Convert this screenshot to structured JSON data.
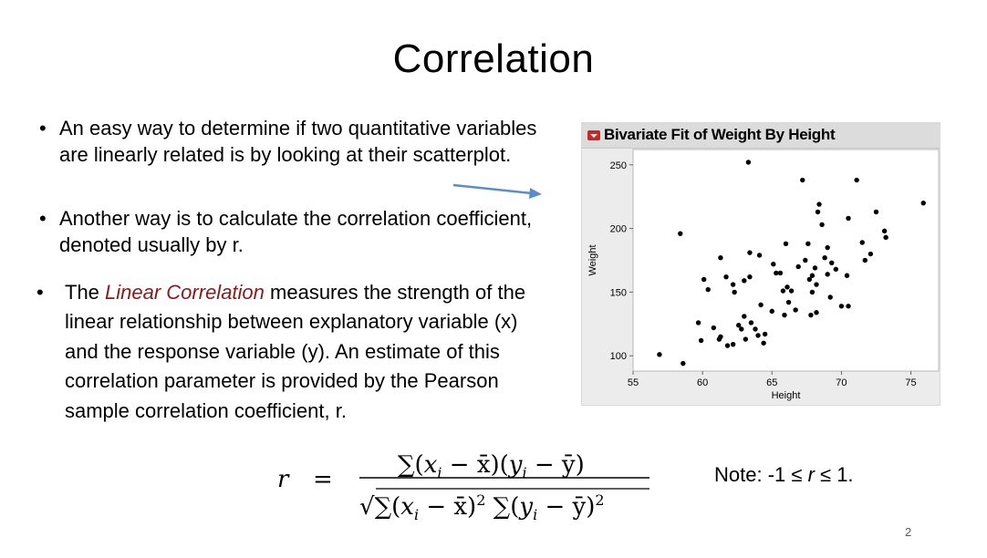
{
  "slide": {
    "title": "Correlation",
    "bullets": [
      "An easy way to determine if two quantitative variables are linearly related is by looking at their scatterplot.",
      "Another way is to calculate the correlation coefficient, denoted usually by r."
    ],
    "bullet3": {
      "before": "The ",
      "emphasis": "Linear Correlation",
      "after": " measures the strength of the linear relationship between explanatory variable (x) and the response variable (y). An estimate of this correlation parameter is provided by the Pearson sample correlation coefficient, r."
    },
    "note": {
      "prefix": "Note: -1 ≤ ",
      "var": "r",
      "suffix": " ≤ 1."
    },
    "page_number": "2",
    "formula_lhs": "r"
  },
  "colors": {
    "emphasis": "#8b1a1a",
    "arrow": "#5b8ec7",
    "panel_bg": "#ececec",
    "toggle": "#c62828",
    "points": "#000000"
  },
  "icons": {
    "panel_toggle": "dropdown-triangle-icon",
    "arrow": "right-arrow-icon"
  },
  "chart_data": {
    "type": "scatter",
    "title": "Bivariate Fit of Weight By Height",
    "xlabel": "Height",
    "ylabel": "Weight",
    "xlim": [
      55,
      77
    ],
    "ylim": [
      88,
      262
    ],
    "xticks": [
      55,
      60,
      65,
      70,
      75
    ],
    "yticks": [
      100,
      150,
      200,
      250
    ],
    "grid": false,
    "points": [
      [
        56.9,
        101
      ],
      [
        58.4,
        196
      ],
      [
        58.6,
        94
      ],
      [
        59.7,
        126
      ],
      [
        59.9,
        112
      ],
      [
        60.1,
        160
      ],
      [
        60.4,
        152
      ],
      [
        60.8,
        122
      ],
      [
        61.2,
        113
      ],
      [
        61.3,
        115
      ],
      [
        61.3,
        177
      ],
      [
        61.7,
        162
      ],
      [
        61.8,
        108
      ],
      [
        62.2,
        109
      ],
      [
        62.2,
        156
      ],
      [
        62.3,
        150
      ],
      [
        62.6,
        124
      ],
      [
        62.8,
        121
      ],
      [
        63.0,
        159
      ],
      [
        63.0,
        131
      ],
      [
        63.1,
        113
      ],
      [
        63.3,
        252
      ],
      [
        63.4,
        181
      ],
      [
        63.4,
        162
      ],
      [
        63.5,
        126
      ],
      [
        63.8,
        121
      ],
      [
        64.0,
        116
      ],
      [
        64.1,
        179
      ],
      [
        64.2,
        140
      ],
      [
        64.4,
        110
      ],
      [
        64.5,
        117
      ],
      [
        65.0,
        135
      ],
      [
        65.1,
        172
      ],
      [
        65.3,
        165
      ],
      [
        65.6,
        165
      ],
      [
        65.8,
        151
      ],
      [
        65.9,
        132
      ],
      [
        66.0,
        188
      ],
      [
        66.1,
        154
      ],
      [
        66.2,
        142
      ],
      [
        66.4,
        151
      ],
      [
        66.7,
        136
      ],
      [
        66.9,
        170
      ],
      [
        67.2,
        238
      ],
      [
        67.4,
        175
      ],
      [
        67.6,
        188
      ],
      [
        67.7,
        160
      ],
      [
        67.8,
        132
      ],
      [
        67.9,
        150
      ],
      [
        67.9,
        163
      ],
      [
        68.1,
        169
      ],
      [
        68.2,
        156
      ],
      [
        68.2,
        134
      ],
      [
        68.3,
        213
      ],
      [
        68.4,
        219
      ],
      [
        68.6,
        203
      ],
      [
        68.8,
        177
      ],
      [
        69.0,
        164
      ],
      [
        69.0,
        185
      ],
      [
        69.2,
        146
      ],
      [
        69.3,
        173
      ],
      [
        69.6,
        168
      ],
      [
        70.0,
        139
      ],
      [
        70.4,
        163
      ],
      [
        70.5,
        139
      ],
      [
        70.5,
        208
      ],
      [
        71.1,
        238
      ],
      [
        71.5,
        189
      ],
      [
        71.7,
        175
      ],
      [
        72.1,
        180
      ],
      [
        72.5,
        213
      ],
      [
        73.1,
        198
      ],
      [
        73.2,
        193
      ],
      [
        75.9,
        220
      ]
    ]
  }
}
